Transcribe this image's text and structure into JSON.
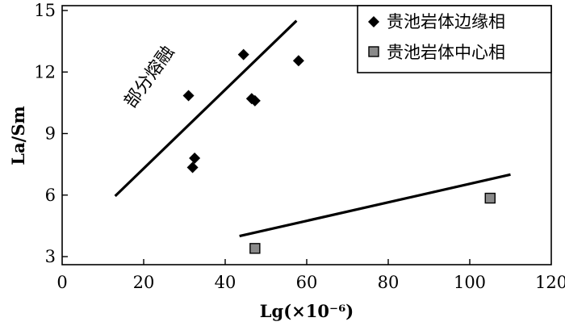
{
  "chart_data": {
    "type": "scatter",
    "xlabel": "Lg(×10⁻⁶)",
    "ylabel": "La/Sm",
    "xlim": [
      0,
      120
    ],
    "ylim": [
      2.5,
      15
    ],
    "x_ticks": [
      "0",
      "20",
      "40",
      "60",
      "80",
      "100",
      "120"
    ],
    "y_ticks": [
      "3",
      "6",
      "9",
      "12",
      "15"
    ],
    "grid": false,
    "legend_position": "top-right",
    "series": [
      {
        "name": "贵池岩体边缘相",
        "marker": "diamond",
        "color": "#000000",
        "points": [
          {
            "x": 31,
            "y": 10.85
          },
          {
            "x": 32,
            "y": 7.35
          },
          {
            "x": 32.5,
            "y": 7.8
          },
          {
            "x": 44.5,
            "y": 12.85
          },
          {
            "x": 46.5,
            "y": 10.7
          },
          {
            "x": 47.3,
            "y": 10.6
          },
          {
            "x": 58,
            "y": 12.55
          }
        ]
      },
      {
        "name": "贵池岩体中心相",
        "marker": "square",
        "color": "#8a8a8a",
        "points": [
          {
            "x": 47.3,
            "y": 3.4
          },
          {
            "x": 105,
            "y": 5.85
          }
        ]
      }
    ],
    "trend_lines": [
      {
        "x": [
          13,
          57.5
        ],
        "y": [
          5.95,
          14.5
        ]
      },
      {
        "x": [
          43.5,
          110
        ],
        "y": [
          4.0,
          7.0
        ]
      }
    ],
    "annotations": [
      {
        "text": "部分熔融",
        "x": 22.5,
        "y": 11.6,
        "rotation": -54
      }
    ]
  }
}
